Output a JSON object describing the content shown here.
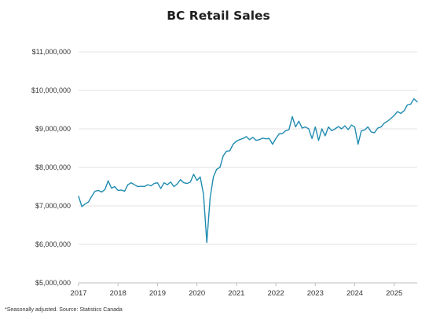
{
  "chart_data": {
    "type": "line",
    "title": "BC Retail Sales",
    "xlabel": "",
    "ylabel": "",
    "footnote": "*Seasonally adjusted. Source: Statistics Canada",
    "xlim": [
      2017,
      2025.583
    ],
    "ylim": [
      5000000,
      11000000
    ],
    "yticks": [
      5000000,
      6000000,
      7000000,
      8000000,
      9000000,
      10000000,
      11000000
    ],
    "ytick_labels": [
      "$5,000,000",
      "$6,000,000",
      "$7,000,000",
      "$8,000,000",
      "$9,000,000",
      "$10,000,000",
      "$11,000,000"
    ],
    "xticks": [
      2017,
      2018,
      2019,
      2020,
      2021,
      2022,
      2023,
      2024,
      2025
    ],
    "xtick_labels": [
      "2017",
      "2018",
      "2019",
      "2020",
      "2021",
      "2022",
      "2023",
      "2024",
      "2025"
    ],
    "grid": "horizontal",
    "line_color": "#1f8bb0",
    "series": [
      {
        "x_start": 2017.0,
        "x_step": 0.0833333,
        "values": [
          7250000,
          6980000,
          7050000,
          7100000,
          7250000,
          7380000,
          7400000,
          7360000,
          7420000,
          7650000,
          7460000,
          7500000,
          7400000,
          7410000,
          7380000,
          7550000,
          7600000,
          7550000,
          7500000,
          7510000,
          7500000,
          7550000,
          7520000,
          7580000,
          7600000,
          7450000,
          7600000,
          7550000,
          7620000,
          7500000,
          7570000,
          7680000,
          7600000,
          7580000,
          7620000,
          7820000,
          7660000,
          7750000,
          7300000,
          6050000,
          7200000,
          7750000,
          7950000,
          8000000,
          8300000,
          8420000,
          8430000,
          8600000,
          8680000,
          8720000,
          8750000,
          8800000,
          8720000,
          8780000,
          8700000,
          8720000,
          8760000,
          8740000,
          8750000,
          8600000,
          8750000,
          8870000,
          8880000,
          8950000,
          8980000,
          9320000,
          9050000,
          9200000,
          9020000,
          9050000,
          9000000,
          8750000,
          9050000,
          8700000,
          9000000,
          8820000,
          9050000,
          8950000,
          9000000,
          9060000,
          9000000,
          9080000,
          8980000,
          9100000,
          9050000,
          8600000,
          8950000,
          8970000,
          9050000,
          8920000,
          8900000,
          9020000,
          9050000,
          9150000,
          9200000,
          9270000,
          9350000,
          9450000,
          9400000,
          9470000,
          9620000,
          9640000,
          9780000,
          9700000
        ]
      }
    ]
  }
}
